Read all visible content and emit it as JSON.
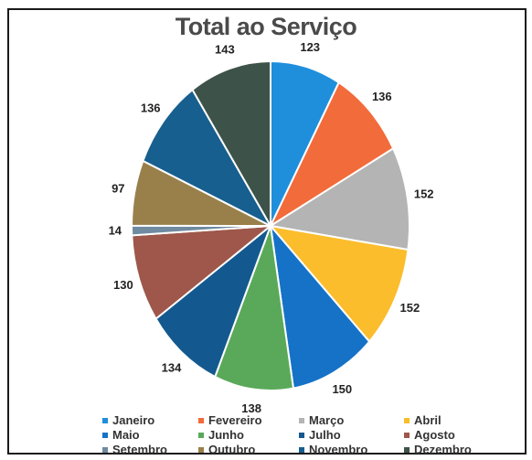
{
  "chart_data": {
    "type": "pie",
    "title": "Total ao Serviço",
    "categories": [
      "Janeiro",
      "Fevereiro",
      "Março",
      "Abril",
      "Maio",
      "Junho",
      "Julho",
      "Agosto",
      "Setembro",
      "Outubro",
      "Novembro",
      "Dezembro"
    ],
    "values": [
      123,
      136,
      152,
      152,
      150,
      138,
      134,
      130,
      14,
      97,
      136,
      143
    ],
    "labels": [
      "123",
      "136",
      "152",
      "152",
      "150",
      "138",
      "134",
      "130",
      "14",
      "97",
      "136",
      "143"
    ],
    "colors": [
      "#1f8fdc",
      "#f26b3a",
      "#b4b4b4",
      "#fbbd2c",
      "#1572c7",
      "#5aa95a",
      "#13598f",
      "#9e574a",
      "#708aa0",
      "#99804b",
      "#175f8f",
      "#3d5248"
    ],
    "legend_placement": "bottom"
  }
}
